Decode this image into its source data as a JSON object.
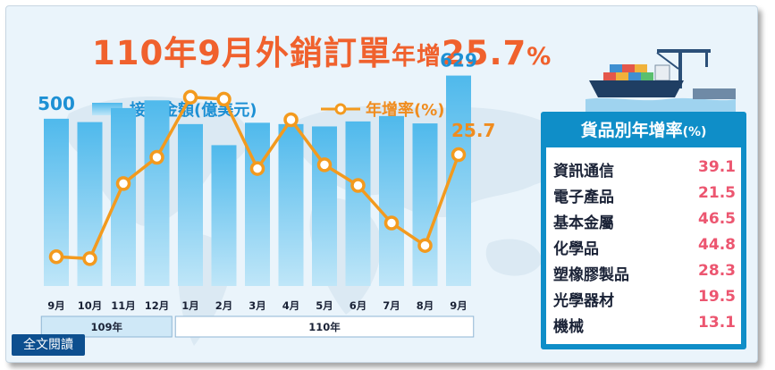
{
  "title": {
    "part1": "110年9月外銷訂單",
    "part2": "年增",
    "part3": "25.7",
    "part4": "%"
  },
  "legend": {
    "bar_label": "接單金額(億美元)",
    "line_label": "年增率(%)"
  },
  "colors": {
    "title": "#f0612d",
    "bar": "#4fb9ec",
    "line": "#f39a1e",
    "bar_label": "#1d90d4",
    "line_label": "#f08c1e",
    "panel": "#0f8ec8",
    "panel_value": "#ec5670"
  },
  "chart_data": {
    "type": "bar+line",
    "categories": [
      "9月",
      "10月",
      "11月",
      "12月",
      "1月",
      "2月",
      "3月",
      "4月",
      "5月",
      "6月",
      "7月",
      "8月",
      "9月"
    ],
    "year_groups": [
      {
        "label": "109年",
        "count": 4
      },
      {
        "label": "110年",
        "count": 9
      }
    ],
    "series": [
      {
        "name": "接單金額(億美元)",
        "type": "bar",
        "values": [
          500,
          490,
          532,
          555,
          484,
          421,
          488,
          484,
          477,
          492,
          508,
          486,
          629
        ]
      },
      {
        "name": "年增率(%)",
        "type": "line",
        "values": [
          -1.5,
          -2.0,
          18.0,
          25.0,
          41.0,
          40.5,
          22.0,
          35.0,
          23.0,
          17.5,
          7.5,
          1.5,
          25.7
        ]
      }
    ],
    "bar_data_labels": [
      {
        "index": 0,
        "text": "500"
      },
      {
        "index": 12,
        "text": "629"
      }
    ],
    "line_data_labels": [
      {
        "index": 12,
        "text": "25.7"
      }
    ],
    "bar_ylim": [
      0,
      700
    ],
    "line_ylim": [
      -15,
      60
    ]
  },
  "panel": {
    "title": "貨品別年增率",
    "title_suffix": "(%)",
    "rows": [
      {
        "name": "資訊通信",
        "value": "39.1"
      },
      {
        "name": "電子產品",
        "value": "21.5"
      },
      {
        "name": "基本金屬",
        "value": "46.5"
      },
      {
        "name": "化學品",
        "value": "44.8"
      },
      {
        "name": "塑橡膠製品",
        "value": "28.3"
      },
      {
        "name": "光學器材",
        "value": "19.5"
      },
      {
        "name": "機械",
        "value": "13.1"
      }
    ]
  },
  "read_button": "全文閱讀"
}
